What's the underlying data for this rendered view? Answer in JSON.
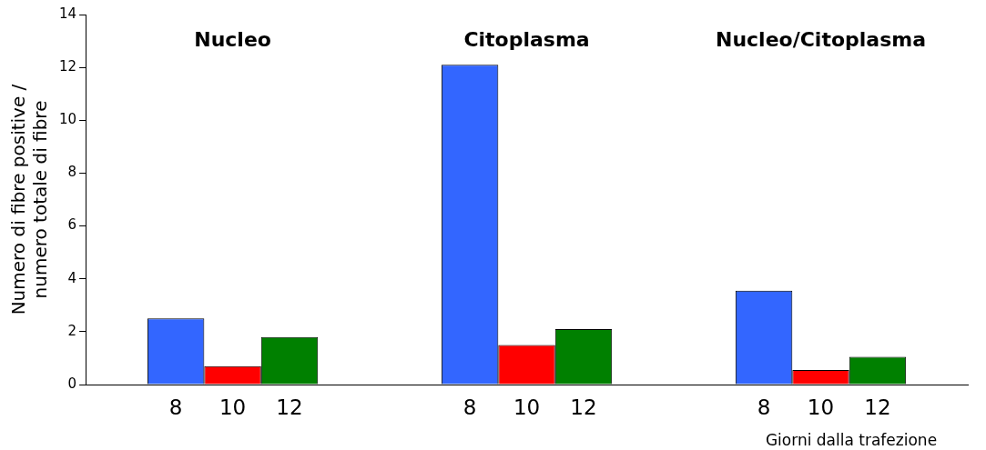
{
  "chart_data": {
    "type": "bar",
    "categories": [
      "Nucleo",
      "Citoplasma",
      "Nucleo/Citoplasma"
    ],
    "series": [
      {
        "name": "8",
        "color": "#3366ff",
        "values": [
          2.5,
          12.1,
          3.55
        ]
      },
      {
        "name": "10",
        "color": "#ff0000",
        "values": [
          0.7,
          1.5,
          0.55
        ]
      },
      {
        "name": "12",
        "color": "#008000",
        "values": [
          1.8,
          2.1,
          1.05
        ]
      }
    ],
    "xlabel": "Giorni dalla trafezione",
    "ylabel": "Numero di fibre positive /\nnumero totale di fibre",
    "ylim": [
      0,
      14
    ],
    "yticks": [
      0,
      2,
      4,
      6,
      8,
      10,
      12,
      14
    ],
    "grid": false,
    "legend": false
  }
}
